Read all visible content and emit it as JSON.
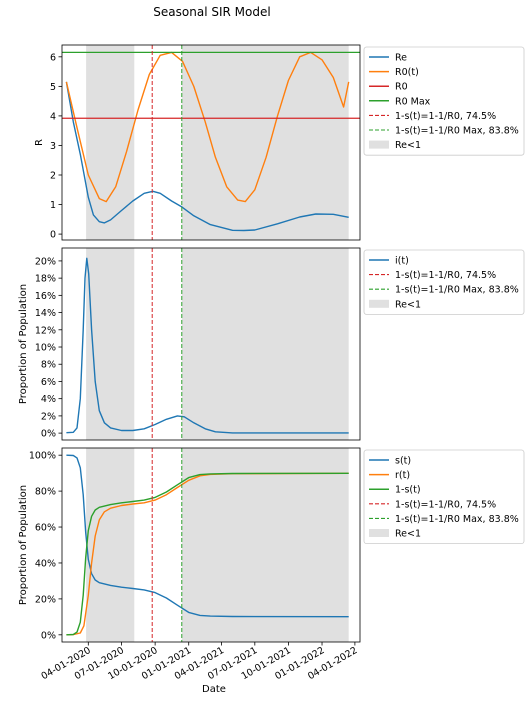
{
  "figure": {
    "title": "Seasonal SIR Model"
  },
  "chart_data": [
    {
      "type": "line",
      "ylabel": "R",
      "ylim": [
        -0.2,
        6.4
      ],
      "yticks": [
        {
          "v": 0,
          "label": "0"
        },
        {
          "v": 1,
          "label": "1"
        },
        {
          "v": 2,
          "label": "2"
        },
        {
          "v": 3,
          "label": "3"
        },
        {
          "v": 4,
          "label": "4"
        },
        {
          "v": 5,
          "label": "5"
        },
        {
          "v": 6,
          "label": "6"
        }
      ],
      "series": [
        {
          "name": "Re",
          "color": "#1f77b4",
          "points": [
            [
              "2020-02-01",
              5.15
            ],
            [
              "2020-02-20",
              3.8
            ],
            [
              "2020-03-10",
              2.7
            ],
            [
              "2020-04-01",
              1.25
            ],
            [
              "2020-04-15",
              0.65
            ],
            [
              "2020-05-01",
              0.42
            ],
            [
              "2020-05-15",
              0.38
            ],
            [
              "2020-06-01",
              0.48
            ],
            [
              "2020-07-01",
              0.8
            ],
            [
              "2020-08-01",
              1.12
            ],
            [
              "2020-09-01",
              1.38
            ],
            [
              "2020-09-25",
              1.45
            ],
            [
              "2020-10-15",
              1.38
            ],
            [
              "2020-11-15",
              1.12
            ],
            [
              "2020-12-13",
              0.92
            ],
            [
              "2021-01-15",
              0.62
            ],
            [
              "2021-03-01",
              0.32
            ],
            [
              "2021-05-01",
              0.13
            ],
            [
              "2021-06-01",
              0.12
            ],
            [
              "2021-07-01",
              0.14
            ],
            [
              "2021-09-01",
              0.35
            ],
            [
              "2021-11-01",
              0.58
            ],
            [
              "2021-12-15",
              0.68
            ],
            [
              "2022-02-01",
              0.67
            ],
            [
              "2022-03-15",
              0.57
            ]
          ]
        },
        {
          "name": "R0(t)",
          "color": "#ff7f0e",
          "points": [
            [
              "2020-02-01",
              5.15
            ],
            [
              "2020-03-01",
              3.6
            ],
            [
              "2020-04-01",
              2.0
            ],
            [
              "2020-05-01",
              1.2
            ],
            [
              "2020-05-20",
              1.1
            ],
            [
              "2020-06-15",
              1.6
            ],
            [
              "2020-07-15",
              2.8
            ],
            [
              "2020-08-15",
              4.2
            ],
            [
              "2020-09-15",
              5.4
            ],
            [
              "2020-10-15",
              6.05
            ],
            [
              "2020-11-15",
              6.15
            ],
            [
              "2020-12-15",
              5.85
            ],
            [
              "2021-01-15",
              5.0
            ],
            [
              "2021-02-15",
              3.8
            ],
            [
              "2021-03-15",
              2.6
            ],
            [
              "2021-04-15",
              1.6
            ],
            [
              "2021-05-15",
              1.15
            ],
            [
              "2021-06-05",
              1.1
            ],
            [
              "2021-07-01",
              1.5
            ],
            [
              "2021-08-01",
              2.6
            ],
            [
              "2021-09-01",
              4.0
            ],
            [
              "2021-10-01",
              5.2
            ],
            [
              "2021-11-01",
              6.0
            ],
            [
              "2021-12-01",
              6.15
            ],
            [
              "2022-01-01",
              5.9
            ],
            [
              "2022-02-01",
              5.3
            ],
            [
              "2022-03-01",
              4.3
            ],
            [
              "2022-03-15",
              5.15
            ]
          ]
        },
        {
          "name": "R0",
          "color": "#d62728",
          "hline": 3.92
        },
        {
          "name": "R0 Max",
          "color": "#2ca02c",
          "hline": 6.15
        }
      ]
    },
    {
      "type": "line",
      "ylabel": "Proportion of Population",
      "ylim": [
        -0.8,
        21.5
      ],
      "yticks": [
        {
          "v": 0,
          "label": "0%"
        },
        {
          "v": 2,
          "label": "2%"
        },
        {
          "v": 4,
          "label": "4%"
        },
        {
          "v": 6,
          "label": "6%"
        },
        {
          "v": 8,
          "label": "8%"
        },
        {
          "v": 10,
          "label": "10%"
        },
        {
          "v": 12,
          "label": "12%"
        },
        {
          "v": 14,
          "label": "14%"
        },
        {
          "v": 16,
          "label": "16%"
        },
        {
          "v": 18,
          "label": "18%"
        },
        {
          "v": 20,
          "label": "20%"
        }
      ],
      "series": [
        {
          "name": "i(t)",
          "color": "#1f77b4",
          "points": [
            [
              "2020-02-01",
              0.05
            ],
            [
              "2020-02-20",
              0.1
            ],
            [
              "2020-03-01",
              0.6
            ],
            [
              "2020-03-10",
              4.0
            ],
            [
              "2020-03-18",
              12.0
            ],
            [
              "2020-03-23",
              18.0
            ],
            [
              "2020-03-28",
              20.3
            ],
            [
              "2020-04-02",
              18.5
            ],
            [
              "2020-04-10",
              12.0
            ],
            [
              "2020-04-20",
              6.0
            ],
            [
              "2020-05-01",
              2.6
            ],
            [
              "2020-05-15",
              1.2
            ],
            [
              "2020-06-01",
              0.6
            ],
            [
              "2020-07-01",
              0.3
            ],
            [
              "2020-08-01",
              0.3
            ],
            [
              "2020-09-01",
              0.5
            ],
            [
              "2020-10-01",
              1.0
            ],
            [
              "2020-11-01",
              1.6
            ],
            [
              "2020-12-01",
              2.0
            ],
            [
              "2020-12-20",
              1.9
            ],
            [
              "2021-01-15",
              1.2
            ],
            [
              "2021-02-15",
              0.5
            ],
            [
              "2021-03-15",
              0.15
            ],
            [
              "2021-05-01",
              0.03
            ],
            [
              "2022-03-15",
              0.02
            ]
          ]
        }
      ]
    },
    {
      "type": "line",
      "ylabel": "Proportion of Population",
      "xlabel": "Date",
      "ylim": [
        -4,
        104
      ],
      "yticks": [
        {
          "v": 0,
          "label": "0%"
        },
        {
          "v": 20,
          "label": "20%"
        },
        {
          "v": 40,
          "label": "40%"
        },
        {
          "v": 60,
          "label": "60%"
        },
        {
          "v": 80,
          "label": "80%"
        },
        {
          "v": 100,
          "label": "100%"
        }
      ],
      "xticks": [
        {
          "date": "2020-04-01",
          "label": "04-01-2020"
        },
        {
          "date": "2020-07-01",
          "label": "07-01-2020"
        },
        {
          "date": "2020-10-01",
          "label": "10-01-2020"
        },
        {
          "date": "2021-01-01",
          "label": "01-01-2021"
        },
        {
          "date": "2021-04-01",
          "label": "04-01-2021"
        },
        {
          "date": "2021-07-01",
          "label": "07-01-2021"
        },
        {
          "date": "2021-10-01",
          "label": "10-01-2021"
        },
        {
          "date": "2022-01-01",
          "label": "01-01-2022"
        },
        {
          "date": "2022-04-01",
          "label": "04-01-2022"
        }
      ],
      "series": [
        {
          "name": "s(t)",
          "color": "#1f77b4",
          "points": [
            [
              "2020-02-01",
              100
            ],
            [
              "2020-02-20",
              99.8
            ],
            [
              "2020-03-01",
              98.5
            ],
            [
              "2020-03-10",
              93
            ],
            [
              "2020-03-18",
              78
            ],
            [
              "2020-03-25",
              57
            ],
            [
              "2020-04-01",
              42
            ],
            [
              "2020-04-10",
              34
            ],
            [
              "2020-04-20",
              30.5
            ],
            [
              "2020-05-01",
              29
            ],
            [
              "2020-06-01",
              27.5
            ],
            [
              "2020-07-01",
              26.5
            ],
            [
              "2020-08-01",
              25.8
            ],
            [
              "2020-09-01",
              25
            ],
            [
              "2020-10-01",
              23.5
            ],
            [
              "2020-11-01",
              20.5
            ],
            [
              "2020-12-01",
              16.5
            ],
            [
              "2021-01-01",
              12.5
            ],
            [
              "2021-02-01",
              10.8
            ],
            [
              "2021-03-01",
              10.4
            ],
            [
              "2021-05-01",
              10.2
            ],
            [
              "2022-03-15",
              10.1
            ]
          ]
        },
        {
          "name": "r(t)",
          "color": "#ff7f0e",
          "points": [
            [
              "2020-02-01",
              0
            ],
            [
              "2020-02-20",
              0.1
            ],
            [
              "2020-03-10",
              1.0
            ],
            [
              "2020-03-20",
              5.0
            ],
            [
              "2020-04-01",
              22
            ],
            [
              "2020-04-10",
              40
            ],
            [
              "2020-04-20",
              55
            ],
            [
              "2020-05-01",
              64
            ],
            [
              "2020-05-15",
              68.5
            ],
            [
              "2020-06-01",
              70.5
            ],
            [
              "2020-07-01",
              72
            ],
            [
              "2020-08-01",
              72.8
            ],
            [
              "2020-09-01",
              73.5
            ],
            [
              "2020-10-01",
              75
            ],
            [
              "2020-11-01",
              78
            ],
            [
              "2020-12-01",
              82
            ],
            [
              "2021-01-01",
              86
            ],
            [
              "2021-02-01",
              88.5
            ],
            [
              "2021-03-01",
              89.3
            ],
            [
              "2021-05-01",
              89.7
            ],
            [
              "2022-03-15",
              89.9
            ]
          ]
        },
        {
          "name": "1-s(t)",
          "color": "#2ca02c",
          "points": [
            [
              "2020-02-01",
              0
            ],
            [
              "2020-02-20",
              0.2
            ],
            [
              "2020-03-01",
              1.5
            ],
            [
              "2020-03-10",
              7
            ],
            [
              "2020-03-18",
              22
            ],
            [
              "2020-03-25",
              43
            ],
            [
              "2020-04-01",
              58
            ],
            [
              "2020-04-10",
              66
            ],
            [
              "2020-04-20",
              69.5
            ],
            [
              "2020-05-01",
              71
            ],
            [
              "2020-06-01",
              72.5
            ],
            [
              "2020-07-01",
              73.5
            ],
            [
              "2020-08-01",
              74.2
            ],
            [
              "2020-09-01",
              75
            ],
            [
              "2020-10-01",
              76.5
            ],
            [
              "2020-11-01",
              79.5
            ],
            [
              "2020-12-01",
              83.5
            ],
            [
              "2021-01-01",
              87.5
            ],
            [
              "2021-02-01",
              89.2
            ],
            [
              "2021-03-01",
              89.6
            ],
            [
              "2021-05-01",
              89.8
            ],
            [
              "2022-03-15",
              89.9
            ]
          ]
        }
      ]
    }
  ],
  "x_axis": {
    "start": "2020-01-20",
    "end": "2022-04-15"
  },
  "vlines": [
    {
      "date": "2020-09-23",
      "color": "#d62728"
    },
    {
      "date": "2020-12-13",
      "color": "#2ca02c"
    }
  ],
  "shaded_regions": [
    {
      "start": "2020-03-26",
      "end": "2020-08-05"
    },
    {
      "start": "2020-12-13",
      "end": "2022-03-15"
    }
  ],
  "legends": [
    [
      "Re",
      "R0(t)",
      "R0",
      "R0 Max",
      "1-s(t)=1-1/R0, 74.5%",
      "1-s(t)=1-1/R0 Max, 83.8%",
      "Re<1"
    ],
    [
      "i(t)",
      "1-s(t)=1-1/R0, 74.5%",
      "1-s(t)=1-1/R0 Max, 83.8%",
      "Re<1"
    ],
    [
      "s(t)",
      "r(t)",
      "1-s(t)",
      "1-s(t)=1-1/R0, 74.5%",
      "1-s(t)=1-1/R0 Max, 83.8%",
      "Re<1"
    ]
  ],
  "legend_styles": {
    "Re": {
      "kind": "line",
      "color": "#1f77b4"
    },
    "R0(t)": {
      "kind": "line",
      "color": "#ff7f0e"
    },
    "R0": {
      "kind": "line",
      "color": "#d62728"
    },
    "R0 Max": {
      "kind": "line",
      "color": "#2ca02c"
    },
    "i(t)": {
      "kind": "line",
      "color": "#1f77b4"
    },
    "s(t)": {
      "kind": "line",
      "color": "#1f77b4"
    },
    "r(t)": {
      "kind": "line",
      "color": "#ff7f0e"
    },
    "1-s(t)": {
      "kind": "line",
      "color": "#2ca02c"
    },
    "1-s(t)=1-1/R0, 74.5%": {
      "kind": "dash",
      "color": "#d62728"
    },
    "1-s(t)=1-1/R0 Max, 83.8%": {
      "kind": "dash",
      "color": "#2ca02c"
    },
    "Re<1": {
      "kind": "patch",
      "color": "#e0e0e0"
    }
  }
}
